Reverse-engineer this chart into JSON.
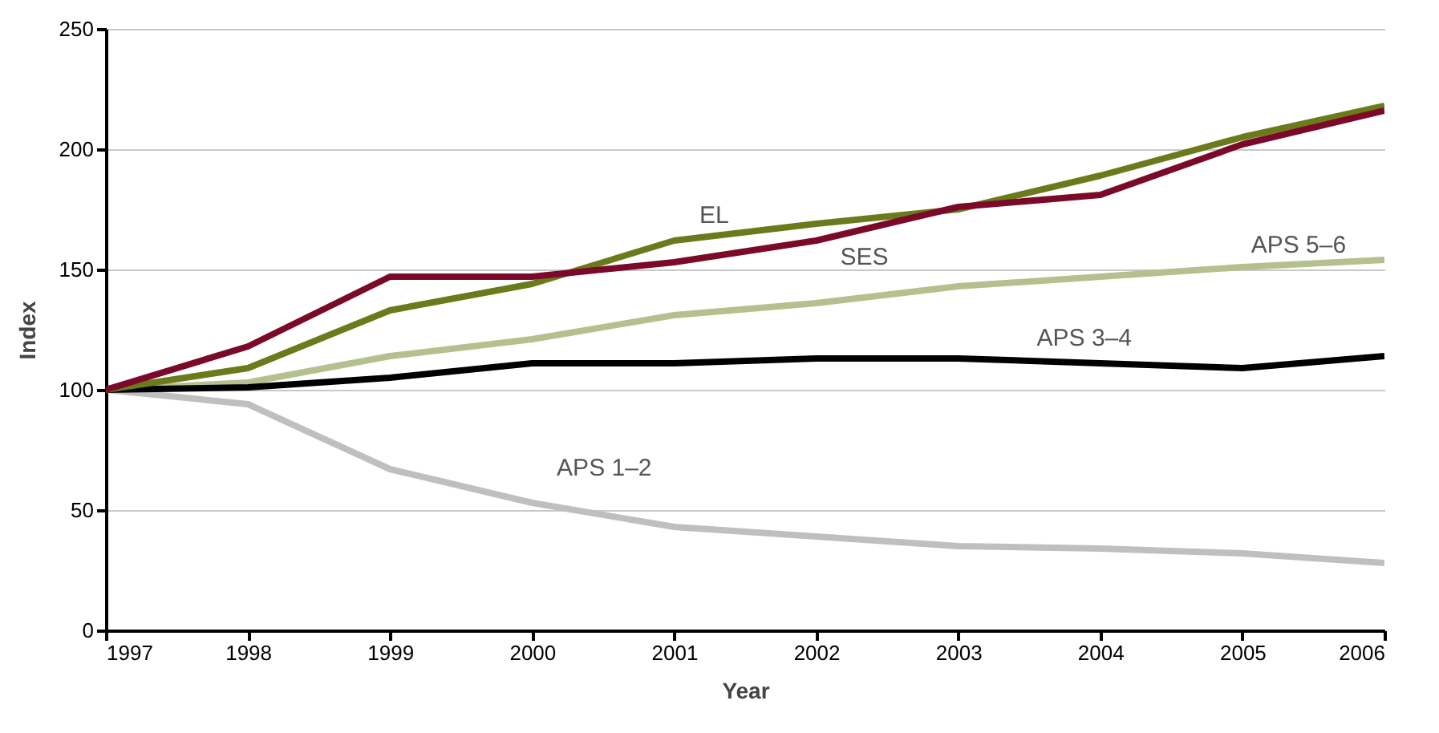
{
  "chart_data": {
    "type": "line",
    "xlabel": "Year",
    "ylabel": "Index",
    "x": [
      1997,
      1998,
      1999,
      2000,
      2001,
      2002,
      2003,
      2004,
      2005,
      2006
    ],
    "series": [
      {
        "name": "APS 1–2",
        "color": "#bfbfbf",
        "values": [
          100,
          94,
          67,
          53,
          43,
          39,
          35,
          34,
          32,
          28
        ]
      },
      {
        "name": "APS 5–6",
        "color": "#b5c08f",
        "values": [
          100,
          103,
          114,
          121,
          131,
          136,
          143,
          147,
          151,
          154
        ]
      },
      {
        "name": "APS 3–4",
        "color": "#000000",
        "values": [
          100,
          101,
          105,
          111,
          111,
          113,
          113,
          111,
          109,
          114
        ]
      },
      {
        "name": "EL",
        "color": "#6b7a1a",
        "values": [
          100,
          109,
          133,
          144,
          162,
          169,
          175,
          189,
          205,
          218
        ]
      },
      {
        "name": "SES",
        "color": "#7b0a2a",
        "values": [
          100,
          118,
          147,
          147,
          153,
          162,
          176,
          181,
          202,
          216
        ]
      }
    ],
    "xlim": [
      1997,
      2006
    ],
    "xticks": [
      1997,
      1998,
      1999,
      2000,
      2001,
      2002,
      2003,
      2004,
      2005,
      2006
    ],
    "ylim": [
      0,
      250
    ],
    "yticks": [
      0,
      50,
      100,
      150,
      200,
      250
    ],
    "grid": "y",
    "marker": "none",
    "line_style": "solid",
    "legend": false
  }
}
